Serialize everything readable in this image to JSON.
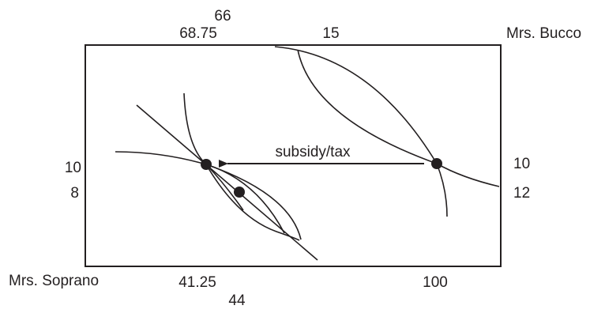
{
  "labels": {
    "top_66": "66",
    "top_68_75": "68.75",
    "top_15": "15",
    "owner_top_right": "Mrs. Bucco",
    "left_10": "10",
    "left_8": "8",
    "right_10": "10",
    "right_12": "12",
    "arrow_label": "subsidy/tax",
    "owner_bottom_left": "Mrs. Soprano",
    "bottom_41_25": "41.25",
    "bottom_44": "44",
    "bottom_100": "100"
  },
  "colors": {
    "ink": "#231f20",
    "background": "#ffffff"
  }
}
